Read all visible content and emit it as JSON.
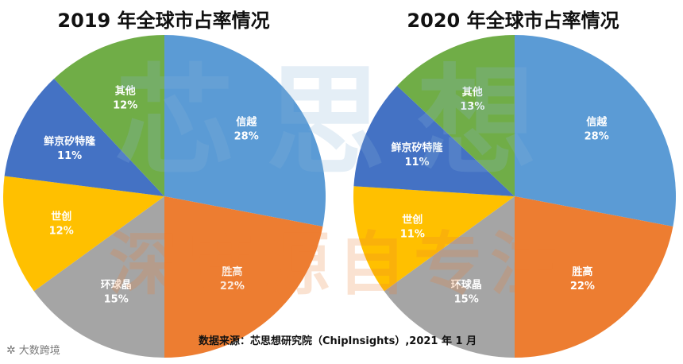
{
  "colors": {
    "xinyue": "#5b9bd5",
    "shenggao": "#ed7d31",
    "huanqiu": "#a5a5a5",
    "shichuang": "#ffc000",
    "sumco": "#4472c4",
    "other": "#70ad47",
    "label": "#ffffff",
    "watermark": "#8ab4d8"
  },
  "source_note": "数据来源：芯思想研究院（ChipInsights）,2021 年 1 月",
  "watermark": {
    "logo_text": "大数跨境",
    "top_text": "芯思想",
    "bottom_text": "深度源自专注"
  },
  "chart_data": [
    {
      "type": "pie",
      "title": "2019 年全球市占率情况",
      "unit": "%",
      "start": "12 o'clock, clockwise",
      "slices": [
        {
          "name": "信越",
          "value": 28,
          "label": "28%",
          "color_key": "xinyue"
        },
        {
          "name": "胜高",
          "value": 22,
          "label": "22%",
          "color_key": "shenggao"
        },
        {
          "name": "环球晶",
          "value": 15,
          "label": "15%",
          "color_key": "huanqiu"
        },
        {
          "name": "世创",
          "value": 12,
          "label": "12%",
          "color_key": "shichuang"
        },
        {
          "name": "鲜京矽特隆",
          "value": 11,
          "label": "11%",
          "color_key": "sumco"
        },
        {
          "name": "其他",
          "value": 12,
          "label": "12%",
          "color_key": "other"
        }
      ]
    },
    {
      "type": "pie",
      "title": "2020 年全球市占率情况",
      "unit": "%",
      "start": "12 o'clock, clockwise",
      "slices": [
        {
          "name": "信越",
          "value": 28,
          "label": "28%",
          "color_key": "xinyue"
        },
        {
          "name": "胜高",
          "value": 22,
          "label": "22%",
          "color_key": "shenggao"
        },
        {
          "name": "环球晶",
          "value": 15,
          "label": "15%",
          "color_key": "huanqiu"
        },
        {
          "name": "世创",
          "value": 11,
          "label": "11%",
          "color_key": "shichuang"
        },
        {
          "name": "鲜京矽特隆",
          "value": 11,
          "label": "11%",
          "color_key": "sumco"
        },
        {
          "name": "其他",
          "value": 13,
          "label": "13%",
          "color_key": "other"
        }
      ]
    }
  ]
}
